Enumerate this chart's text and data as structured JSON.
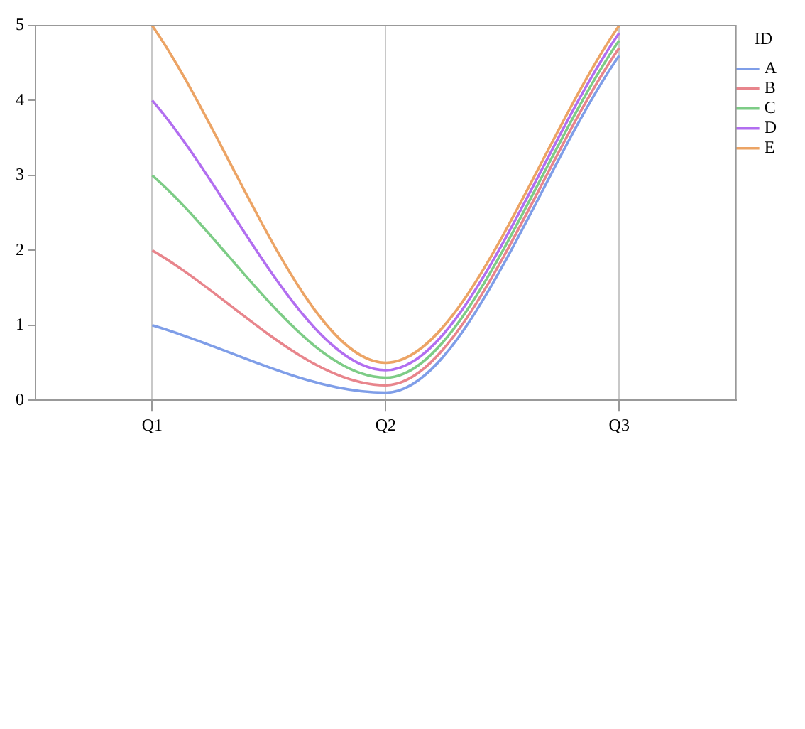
{
  "chart_data": {
    "type": "line",
    "categories": [
      "Q1",
      "Q2",
      "Q3"
    ],
    "series": [
      {
        "name": "A",
        "color": "#7f9ee8",
        "values": [
          1,
          0.1,
          4.6
        ]
      },
      {
        "name": "B",
        "color": "#e8858c",
        "values": [
          2,
          0.2,
          4.7
        ]
      },
      {
        "name": "C",
        "color": "#7dcc86",
        "values": [
          3,
          0.3,
          4.8
        ]
      },
      {
        "name": "D",
        "color": "#b26ef0",
        "values": [
          4,
          0.4,
          4.9
        ]
      },
      {
        "name": "E",
        "color": "#eca465",
        "values": [
          5,
          0.5,
          5
        ]
      }
    ],
    "legend_title": "ID",
    "legend": "right",
    "ylim": [
      0,
      5
    ],
    "yticks": [
      0,
      1,
      2,
      3,
      4,
      5
    ],
    "grid": "x",
    "marker": "none"
  }
}
